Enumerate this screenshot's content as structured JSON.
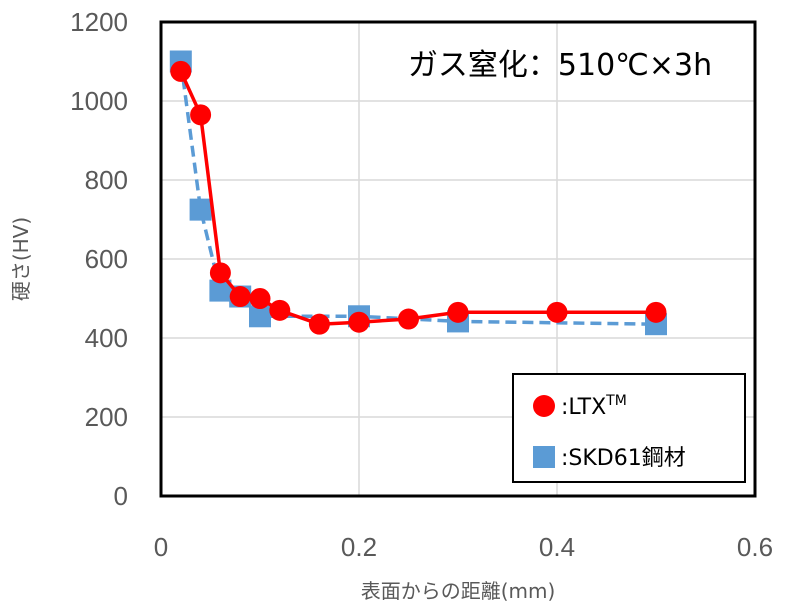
{
  "chart_data": {
    "type": "line",
    "xlabel": "表面からの距離(mm)",
    "ylabel": "硬さ(HV)",
    "xlim": [
      0,
      0.6
    ],
    "ylim": [
      0,
      1200
    ],
    "xticks": [
      "0",
      "0.2",
      "0.4",
      "0.6"
    ],
    "yticks": [
      "0",
      "200",
      "400",
      "600",
      "800",
      "1000",
      "1200"
    ],
    "annotation": "ガス窒化：510℃×3h",
    "grid": true,
    "legend_position": "bottom-right",
    "series": [
      {
        "name": ":LTXTM",
        "legend_base": ":LTX",
        "legend_sup": "TM",
        "color": "#ff0000",
        "marker": "circle",
        "line": "solid",
        "x": [
          0.02,
          0.04,
          0.06,
          0.08,
          0.1,
          0.12,
          0.16,
          0.2,
          0.25,
          0.3,
          0.4,
          0.5
        ],
        "y": [
          1075,
          965,
          565,
          505,
          500,
          470,
          435,
          440,
          448,
          465,
          465,
          465
        ]
      },
      {
        "name": ":SKD61鋼材",
        "legend_base": ":SKD61鋼材",
        "legend_sup": "",
        "color": "#5b9bd5",
        "marker": "square",
        "line": "dashed",
        "x": [
          0.02,
          0.04,
          0.06,
          0.08,
          0.1,
          0.2,
          0.3,
          0.5
        ],
        "y": [
          1100,
          725,
          520,
          505,
          455,
          455,
          442,
          435
        ]
      }
    ]
  }
}
